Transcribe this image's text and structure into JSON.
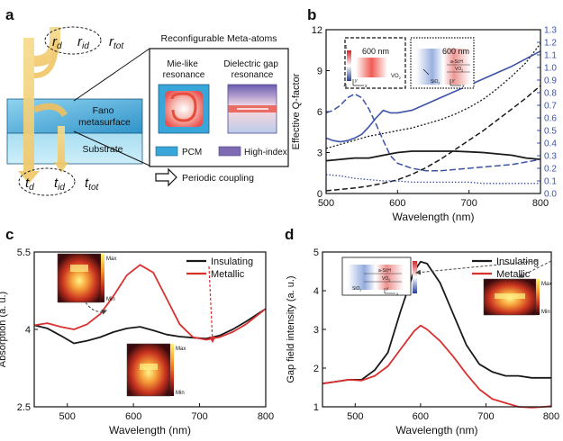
{
  "panels": {
    "a": {
      "letter": "a",
      "r_d": "r",
      "r_d_sub": "d",
      "r_id": "r",
      "r_id_sub": "id",
      "r_tot": "r",
      "r_tot_sub": "tot",
      "t_d": "t",
      "t_d_sub": "d",
      "t_id": "t",
      "t_id_sub": "id",
      "t_tot": "t",
      "t_tot_sub": "tot",
      "fano_line1": "Fano",
      "fano_line2": "metasurface",
      "substrate": "Substrate",
      "box_title": "Reconfigurable Meta-atoms",
      "mie_line1": "Mie-like",
      "mie_line2": "resonance",
      "gap_line1": "Dielectric gap",
      "gap_line2": "resonance",
      "legend_pcm": "PCM",
      "legend_high": "High-index",
      "periodic": "Periodic coupling",
      "colors": {
        "pcm": "#38a6d8",
        "high_index": "#7f6bb3",
        "beam": "#f3d47e"
      }
    },
    "b": {
      "letter": "b",
      "inset1_label": "600 nm",
      "inset1_vo2": "VO",
      "inset1_vo2_sub": "2",
      "inset2_label": "600 nm",
      "inset2_asi": "a-Si:H",
      "inset2_vo2": "VO",
      "inset2_vo2_sub": "2",
      "inset2_sio2": "SiO",
      "inset2_sio2_sub": "2",
      "axis_y": "y",
      "axis_x": "x",
      "colorbar_max": "1",
      "colorbar_min": "-1"
    },
    "c": {
      "letter": "c",
      "inset_max": "Max",
      "inset_min": "Min",
      "axis_y": "y",
      "axis_x": "x"
    },
    "d": {
      "letter": "d",
      "inset_asi": "a-Si:H",
      "inset_vo2": "VO",
      "inset_vo2_sub": "2",
      "inset_sio2": "SiO",
      "inset_sio2_sub": "2",
      "inset_max": "Max",
      "inset_min": "Min",
      "axis_y": "y",
      "axis_x": "x"
    }
  },
  "chart_data": [
    {
      "panel": "b",
      "type": "line",
      "xlabel": "Wavelength (nm)",
      "ylabel": "Effective Q-factor",
      "xlim": [
        500,
        800
      ],
      "ylim": [
        0,
        12
      ],
      "ylim_right": [
        0,
        1.3
      ],
      "xticks": [
        500,
        600,
        700,
        800
      ],
      "yticks": [
        0,
        3,
        6,
        9,
        12
      ],
      "yticks_right": [
        "0.0",
        "0.1",
        "0.2",
        "0.3",
        "0.4",
        "0.5",
        "0.6",
        "0.7",
        "0.8",
        "0.9",
        "1.0",
        "1.1",
        "1.2",
        "1.3"
      ],
      "series": [
        {
          "axis": "left",
          "color": "#1a1a1a",
          "dash": "solid",
          "width": 1.8,
          "x": [
            500,
            520,
            540,
            560,
            580,
            600,
            620,
            640,
            660,
            680,
            700,
            720,
            740,
            760,
            780,
            800
          ],
          "y": [
            2.4,
            2.5,
            2.6,
            2.6,
            2.8,
            3.0,
            3.1,
            3.1,
            3.1,
            3.1,
            3.05,
            3.0,
            2.9,
            2.8,
            2.6,
            2.5
          ]
        },
        {
          "axis": "left",
          "color": "#1a1a1a",
          "dash": "2,2",
          "width": 1.3,
          "x": [
            500,
            520,
            540,
            560,
            580,
            600,
            620,
            640,
            660,
            680,
            700,
            720,
            740,
            760,
            780,
            800
          ],
          "y": [
            3.3,
            3.6,
            3.9,
            4.2,
            4.4,
            4.6,
            4.8,
            5.1,
            5.4,
            5.8,
            6.3,
            6.9,
            7.7,
            8.6,
            9.6,
            11.0
          ]
        },
        {
          "axis": "left",
          "color": "#1a1a1a",
          "dash": "6,3",
          "width": 1.5,
          "x": [
            500,
            520,
            540,
            560,
            580,
            600,
            620,
            640,
            660,
            680,
            700,
            720,
            740,
            760,
            780,
            800
          ],
          "y": [
            0.2,
            0.3,
            0.4,
            0.55,
            0.75,
            1.0,
            1.4,
            1.9,
            2.5,
            3.2,
            3.9,
            4.6,
            5.4,
            6.2,
            7.0,
            7.9
          ]
        },
        {
          "axis": "right",
          "color": "#3d53a8",
          "dash": "solid",
          "width": 1.6,
          "x": [
            500,
            510,
            520,
            530,
            540,
            550,
            560,
            570,
            580,
            590,
            600,
            620,
            640,
            660,
            680,
            700,
            720,
            740,
            760,
            780,
            800
          ],
          "y": [
            0.44,
            0.42,
            0.41,
            0.42,
            0.44,
            0.47,
            0.53,
            0.6,
            0.66,
            0.64,
            0.64,
            0.66,
            0.71,
            0.76,
            0.81,
            0.86,
            0.91,
            0.96,
            1.01,
            1.07,
            1.13
          ]
        },
        {
          "axis": "right",
          "color": "#3d53a8",
          "dash": "7,3",
          "width": 1.5,
          "x": [
            500,
            510,
            520,
            530,
            540,
            550,
            560,
            570,
            580,
            590,
            600,
            620,
            640,
            660,
            680,
            700,
            720,
            740,
            760,
            780,
            800
          ],
          "y": [
            0.64,
            0.66,
            0.7,
            0.76,
            0.79,
            0.76,
            0.67,
            0.55,
            0.42,
            0.3,
            0.24,
            0.2,
            0.18,
            0.18,
            0.19,
            0.2,
            0.21,
            0.22,
            0.23,
            0.25,
            0.27
          ]
        },
        {
          "axis": "right",
          "color": "#3d53a8",
          "dash": "1.5,2",
          "width": 1.3,
          "x": [
            500,
            520,
            540,
            560,
            580,
            600,
            620,
            640,
            660,
            680,
            700,
            720,
            740,
            760,
            780,
            800
          ],
          "y": [
            0.15,
            0.14,
            0.12,
            0.11,
            0.1,
            0.1,
            0.09,
            0.09,
            0.09,
            0.09,
            0.09,
            0.08,
            0.08,
            0.08,
            0.08,
            0.08
          ]
        }
      ]
    },
    {
      "panel": "c",
      "type": "line",
      "xlabel": "Wavelength (nm)",
      "ylabel": "Absorption (a. u.)",
      "xlim": [
        450,
        800
      ],
      "ylim": [
        2.5,
        5.5
      ],
      "xticks": [
        500,
        600,
        700,
        800
      ],
      "yticks": [
        2.5,
        4,
        5.5
      ],
      "legend": "top-right",
      "series": [
        {
          "name": "Insulating",
          "color": "#1a1a1a",
          "x": [
            450,
            470,
            490,
            510,
            530,
            550,
            570,
            590,
            610,
            630,
            650,
            670,
            690,
            710,
            730,
            750,
            770,
            790,
            800
          ],
          "y": [
            4.08,
            4.02,
            3.88,
            3.73,
            3.78,
            3.85,
            3.95,
            4.02,
            4.05,
            3.98,
            3.9,
            3.86,
            3.84,
            3.82,
            3.88,
            4.0,
            4.15,
            4.32,
            4.4
          ]
        },
        {
          "name": "Metallic",
          "color": "#d93030",
          "x": [
            450,
            470,
            490,
            510,
            530,
            550,
            570,
            590,
            610,
            630,
            650,
            670,
            690,
            710,
            730,
            750,
            770,
            790,
            800
          ],
          "y": [
            4.08,
            4.12,
            4.05,
            4.0,
            4.1,
            4.3,
            4.65,
            5.05,
            5.25,
            5.1,
            4.6,
            4.1,
            3.85,
            3.8,
            3.85,
            3.95,
            4.1,
            4.3,
            4.4
          ]
        }
      ]
    },
    {
      "panel": "d",
      "type": "line",
      "xlabel": "Wavelength (nm)",
      "ylabel": "Gap field intensity (a. u.)",
      "xlim": [
        450,
        800
      ],
      "ylim": [
        1,
        5
      ],
      "xticks": [
        500,
        600,
        700,
        800
      ],
      "yticks": [
        1,
        2,
        3,
        4,
        5
      ],
      "legend": "top-right",
      "series": [
        {
          "name": "Insulating",
          "color": "#1a1a1a",
          "x": [
            450,
            470,
            490,
            510,
            530,
            550,
            570,
            590,
            600,
            610,
            630,
            650,
            670,
            690,
            710,
            730,
            750,
            770,
            790,
            800
          ],
          "y": [
            1.6,
            1.65,
            1.7,
            1.7,
            1.95,
            2.4,
            3.5,
            4.5,
            4.75,
            4.7,
            4.2,
            3.4,
            2.6,
            2.1,
            1.9,
            1.8,
            1.8,
            1.75,
            1.75,
            1.75
          ]
        },
        {
          "name": "Metallic",
          "color": "#d93030",
          "x": [
            450,
            470,
            490,
            510,
            530,
            550,
            570,
            590,
            600,
            610,
            630,
            650,
            670,
            690,
            710,
            730,
            750,
            770,
            790,
            800
          ],
          "y": [
            1.6,
            1.65,
            1.7,
            1.68,
            1.8,
            2.05,
            2.5,
            2.95,
            3.1,
            3.0,
            2.7,
            2.3,
            1.85,
            1.45,
            1.2,
            1.1,
            1.0,
            0.98,
            1.0,
            1.02
          ]
        }
      ]
    }
  ]
}
